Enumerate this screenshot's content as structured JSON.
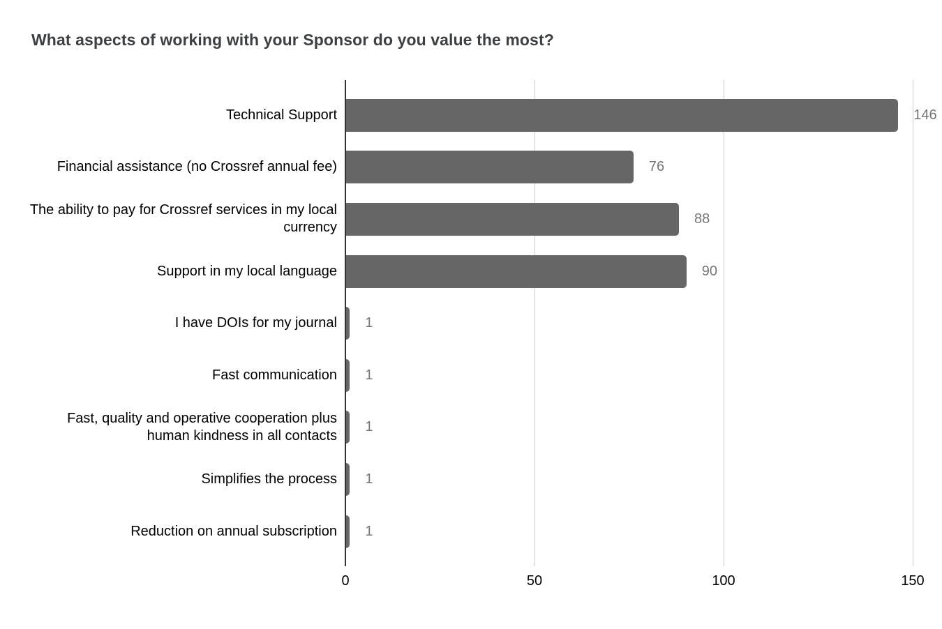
{
  "chart_data": {
    "type": "bar",
    "orientation": "horizontal",
    "title": "What aspects of working with your Sponsor do you value the most?",
    "categories": [
      "Technical Support",
      "Financial assistance (no Crossref annual fee)",
      "The ability to pay for Crossref services in my local currency",
      "Support in my local language",
      "I have DOIs for my journal",
      "Fast communication",
      "Fast, quality and operative cooperation plus human kindness in all contacts",
      "Simplifies the process",
      "Reduction on annual subscription"
    ],
    "values": [
      146,
      76,
      88,
      90,
      1,
      1,
      1,
      1,
      1
    ],
    "value_labels": [
      "146",
      "76",
      "88",
      "90",
      "1",
      "1",
      "1",
      "1",
      "1"
    ],
    "x_ticks": [
      0,
      50,
      100,
      150
    ],
    "xlim": [
      0,
      157.5
    ],
    "grid": true,
    "legend": "none"
  },
  "colors": {
    "bar": "#666666",
    "value_label": "#757575",
    "gridline": "#cccccc",
    "axis_line": "#333333",
    "tick_label": "#000000",
    "category_label": "#000000",
    "title": "#3c4043",
    "background": "#ffffff"
  }
}
